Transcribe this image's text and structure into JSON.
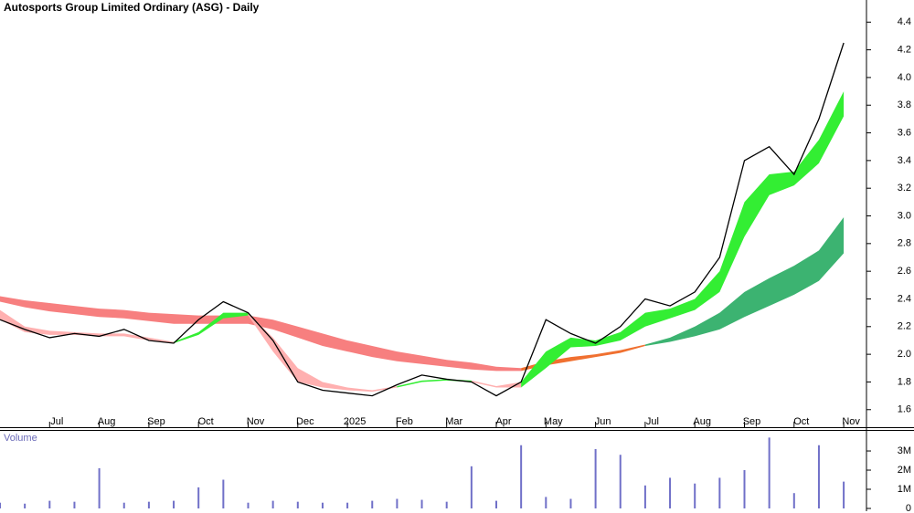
{
  "chart_data": [
    {
      "type": "line",
      "title": "Autosports Group Limited Ordinary (ASG) - Daily",
      "categories": [
        null,
        null,
        "Jul",
        null,
        "Aug",
        null,
        "Sep",
        null,
        "Oct",
        null,
        "Nov",
        null,
        "Dec",
        null,
        "2025",
        null,
        "Feb",
        null,
        "Mar",
        null,
        "Apr",
        null,
        "May",
        null,
        "Jun",
        null,
        "Jul",
        null,
        "Aug",
        null,
        "Sep",
        null,
        "Oct",
        null,
        "Nov"
      ],
      "ylim": [
        1.46,
        4.56
      ],
      "yticks": [
        1.6,
        1.8,
        {
          "value": 2,
          "label": "2.0"
        },
        2.2,
        2.4,
        2.6,
        2.8,
        {
          "value": 3,
          "label": "3.0"
        },
        3.2,
        3.4,
        3.6,
        3.8,
        {
          "value": 4,
          "label": "4.0"
        },
        4.2,
        4.4
      ],
      "bands": [
        {
          "color": "#f77f7f",
          "upper": [
            2.42,
            2.39,
            2.37,
            2.35,
            2.33,
            2.32,
            2.3,
            2.29,
            2.28,
            2.28,
            2.28,
            2.25,
            2.2,
            2.15,
            2.1,
            2.06,
            2.02,
            1.99,
            1.96,
            1.94,
            1.91,
            1.9,
            null,
            null,
            null,
            null,
            null,
            null,
            null,
            null,
            null,
            null,
            null,
            null,
            null
          ],
          "lower": [
            2.38,
            2.34,
            2.31,
            2.29,
            2.27,
            2.26,
            2.24,
            2.22,
            2.22,
            2.22,
            2.22,
            2.18,
            2.12,
            2.06,
            2.02,
            1.98,
            1.95,
            1.93,
            1.91,
            1.89,
            1.88,
            1.88,
            null,
            null,
            null,
            null,
            null,
            null,
            null,
            null,
            null,
            null,
            null,
            null,
            null
          ]
        },
        {
          "color": "#f07030",
          "upper": [
            null,
            null,
            null,
            null,
            null,
            null,
            null,
            null,
            null,
            null,
            null,
            null,
            null,
            null,
            null,
            null,
            null,
            null,
            null,
            null,
            null,
            1.9,
            1.95,
            1.98,
            2.0,
            2.03,
            2.07,
            null,
            null,
            null,
            null,
            null,
            null,
            null,
            null
          ],
          "lower": [
            null,
            null,
            null,
            null,
            null,
            null,
            null,
            null,
            null,
            null,
            null,
            null,
            null,
            null,
            null,
            null,
            null,
            null,
            null,
            null,
            null,
            1.88,
            1.92,
            1.95,
            1.98,
            2.01,
            2.06,
            null,
            null,
            null,
            null,
            null,
            null,
            null,
            null
          ]
        },
        {
          "color": "#3cb371",
          "upper": [
            null,
            null,
            null,
            null,
            null,
            null,
            null,
            null,
            null,
            null,
            null,
            null,
            null,
            null,
            null,
            null,
            null,
            null,
            null,
            null,
            null,
            null,
            null,
            null,
            null,
            null,
            2.07,
            2.12,
            2.2,
            2.3,
            2.45,
            2.55,
            2.64,
            2.75,
            2.99
          ],
          "lower": [
            null,
            null,
            null,
            null,
            null,
            null,
            null,
            null,
            null,
            null,
            null,
            null,
            null,
            null,
            null,
            null,
            null,
            null,
            null,
            null,
            null,
            null,
            null,
            null,
            null,
            null,
            2.06,
            2.09,
            2.13,
            2.18,
            2.27,
            2.35,
            2.43,
            2.53,
            2.73
          ]
        },
        {
          "color": "#ffb0b0",
          "upper": [
            2.32,
            2.2,
            2.17,
            2.16,
            2.15,
            2.15,
            2.12,
            2.09,
            null,
            null,
            2.3,
            2.12,
            1.9,
            1.8,
            1.76,
            1.74,
            1.77,
            null,
            null,
            1.81,
            1.77,
            1.8,
            null,
            null,
            null,
            null,
            null,
            null,
            null,
            null,
            null,
            null,
            null,
            null,
            null
          ],
          "lower": [
            2.25,
            2.16,
            2.14,
            2.14,
            2.13,
            2.13,
            2.1,
            2.08,
            null,
            null,
            2.28,
            2.02,
            1.8,
            1.76,
            1.74,
            1.73,
            1.76,
            null,
            null,
            1.8,
            1.76,
            1.76,
            null,
            null,
            null,
            null,
            null,
            null,
            null,
            null,
            null,
            null,
            null,
            null,
            null
          ]
        },
        {
          "color": "#33ee33",
          "upper": [
            null,
            null,
            null,
            null,
            null,
            null,
            null,
            2.09,
            2.16,
            2.3,
            2.3,
            null,
            null,
            null,
            null,
            null,
            1.77,
            1.81,
            1.82,
            1.81,
            null,
            1.8,
            2.02,
            2.12,
            2.1,
            2.16,
            2.3,
            2.33,
            2.4,
            2.6,
            3.1,
            3.3,
            3.32,
            3.55,
            3.9
          ],
          "lower": [
            null,
            null,
            null,
            null,
            null,
            null,
            null,
            2.08,
            2.14,
            2.26,
            2.28,
            null,
            null,
            null,
            null,
            null,
            1.76,
            1.8,
            1.81,
            1.8,
            null,
            1.76,
            1.9,
            2.05,
            2.06,
            2.1,
            2.2,
            2.26,
            2.32,
            2.45,
            2.85,
            3.15,
            3.22,
            3.38,
            3.72
          ]
        }
      ],
      "series": [
        {
          "name": "ASG",
          "color": "#000000",
          "values": [
            2.25,
            2.18,
            2.12,
            2.15,
            2.13,
            2.18,
            2.1,
            2.08,
            2.25,
            2.38,
            2.3,
            2.1,
            1.8,
            1.74,
            1.72,
            1.7,
            1.78,
            1.85,
            1.82,
            1.8,
            1.7,
            1.8,
            2.25,
            2.15,
            2.08,
            2.2,
            2.4,
            2.35,
            2.45,
            2.7,
            3.4,
            3.5,
            3.3,
            3.7,
            4.25
          ]
        }
      ]
    },
    {
      "type": "bar",
      "title": "Volume",
      "color": "#7070c8",
      "ylim": [
        0,
        4050000
      ],
      "yticks": [
        0,
        {
          "value": 1000000,
          "label": "1M"
        },
        {
          "value": 2000000,
          "label": "2M"
        },
        {
          "value": 3000000,
          "label": "3M"
        }
      ],
      "values": [
        300000,
        250000,
        400000,
        350000,
        2100000,
        300000,
        350000,
        400000,
        1100000,
        1500000,
        300000,
        400000,
        350000,
        300000,
        300000,
        400000,
        500000,
        450000,
        350000,
        2200000,
        400000,
        3300000,
        600000,
        500000,
        3100000,
        2800000,
        1200000,
        1600000,
        1300000,
        1600000,
        2000000,
        3700000,
        800000,
        3300000,
        1400000
      ]
    }
  ]
}
